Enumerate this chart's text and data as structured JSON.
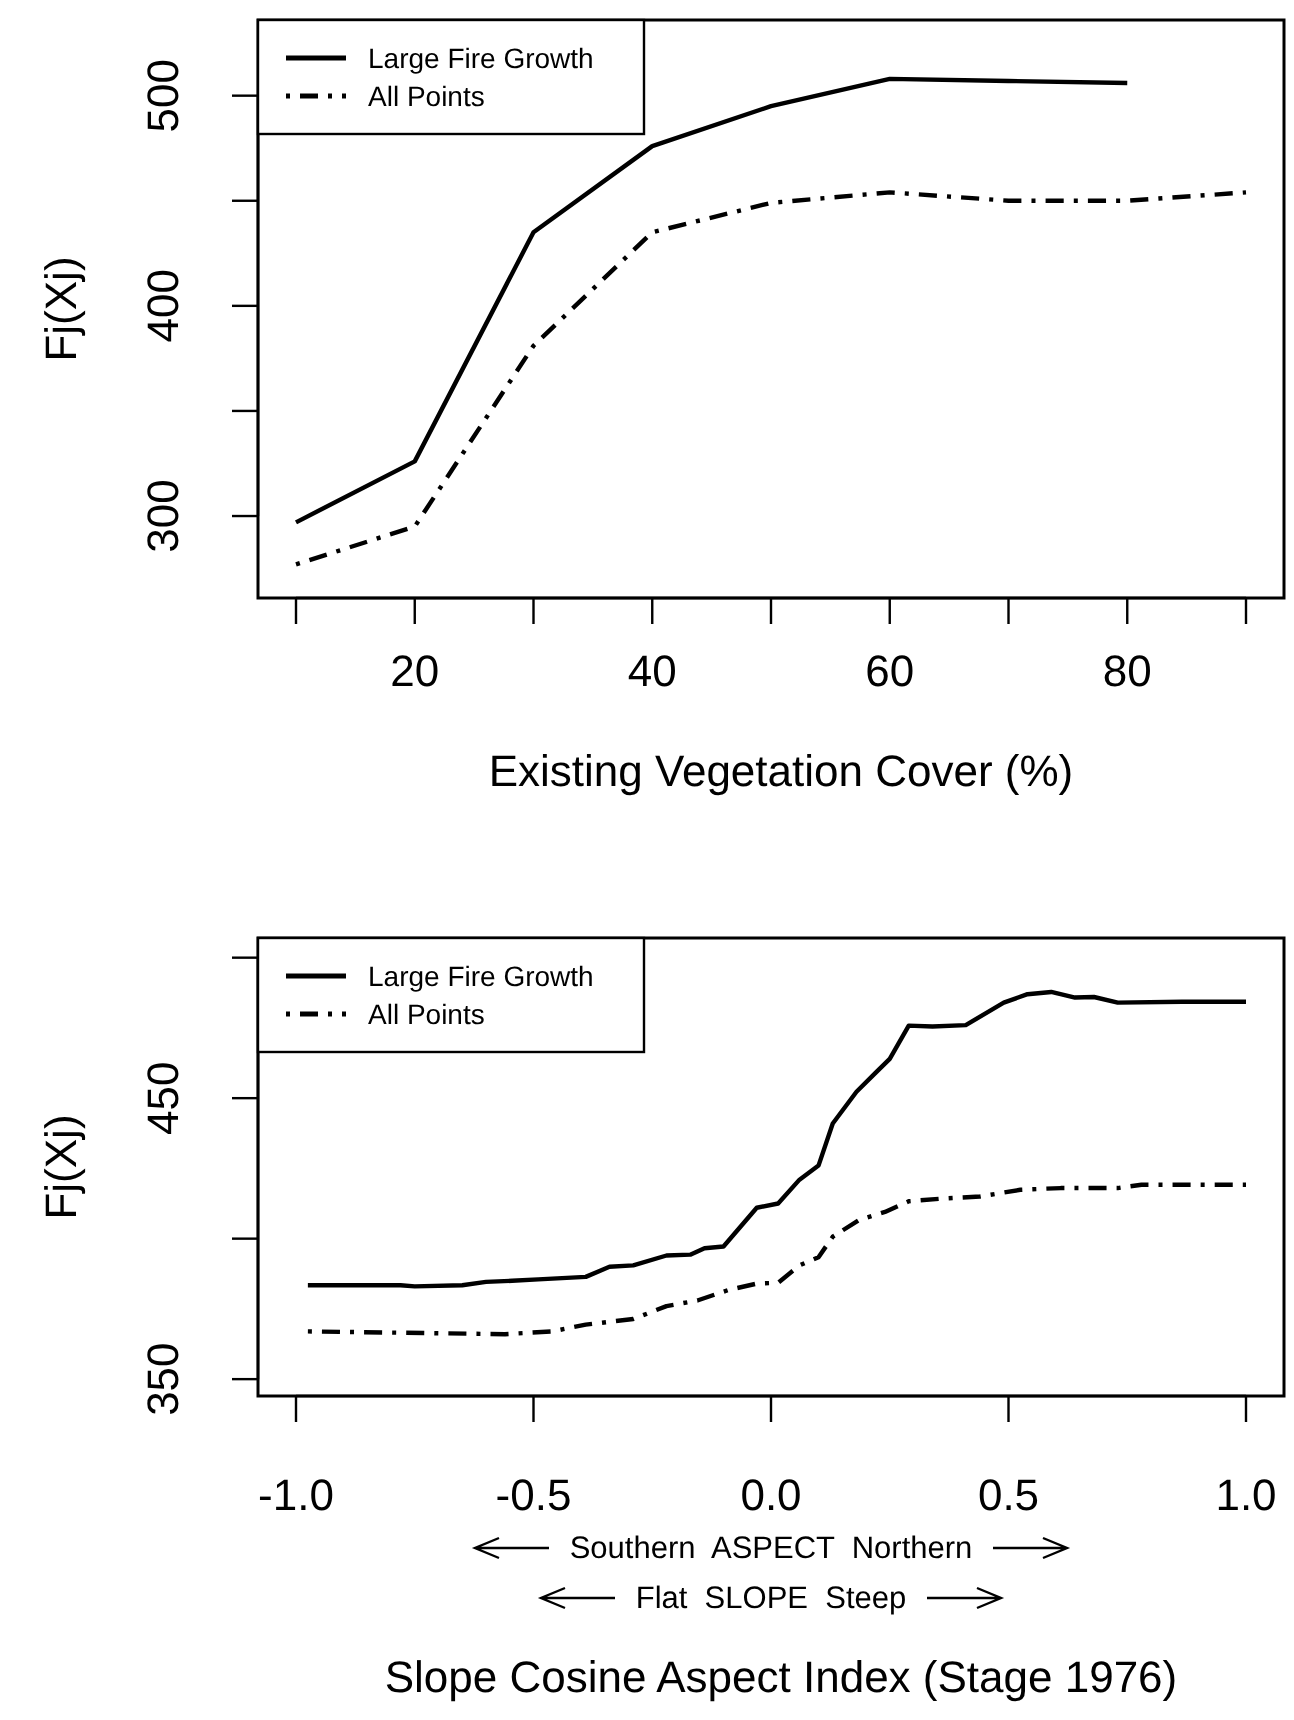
{
  "chart_data": [
    {
      "type": "line",
      "xlabel": "Existing Vegetation Cover (%)",
      "ylabel": "Fj(Xj)",
      "xlim": [
        6.8,
        93.2
      ],
      "ylim": [
        261,
        536
      ],
      "xticks": [
        {
          "value": 10,
          "label": null
        },
        20,
        {
          "value": 30,
          "label": null
        },
        40,
        {
          "value": 50,
          "label": null
        },
        60,
        {
          "value": 70,
          "label": null
        },
        80,
        {
          "value": 90,
          "label": null
        }
      ],
      "yticks": [
        300,
        {
          "value": 350,
          "label": null
        },
        400,
        {
          "value": 450,
          "label": null
        },
        500
      ],
      "legend": "top left",
      "grid": false,
      "series": [
        {
          "name": "Large Fire Growth",
          "color": "#000000",
          "line_style": "solid",
          "x": [
            10,
            20,
            30,
            40,
            50,
            60,
            70,
            80
          ],
          "values": [
            297,
            326,
            435,
            476,
            495,
            508,
            507,
            506
          ]
        },
        {
          "name": "All Points",
          "color": "#000000",
          "line_style": "dashed",
          "x": [
            10,
            20,
            30,
            40,
            50,
            60,
            70,
            80,
            90
          ],
          "values": [
            277,
            295,
            381,
            435,
            449,
            454,
            450,
            450,
            454
          ]
        }
      ]
    },
    {
      "type": "line",
      "xlabel": "Slope Cosine Aspect Index (Stage 1976)",
      "ylabel": "Fj(Xj)",
      "xlim": [
        -1.08,
        1.08
      ],
      "ylim": [
        344,
        507
      ],
      "xticks": [
        {
          "value": -1,
          "label": "-1.0"
        },
        {
          "value": -0.5,
          "label": "-0.5"
        },
        {
          "value": 0,
          "label": "0.0"
        },
        {
          "value": 0.5,
          "label": "0.5"
        },
        {
          "value": 1,
          "label": "1.0"
        }
      ],
      "yticks": [
        350,
        {
          "value": 400,
          "label": null
        },
        450,
        {
          "value": 500,
          "label": null
        }
      ],
      "annotations": [
        "Southern  ASPECT  Northern",
        "Flat  SLOPE  Steep"
      ],
      "legend": "top left",
      "grid": false,
      "series": [
        {
          "name": "Large Fire Growth",
          "color": "#000000",
          "line_style": "solid",
          "x": [
            -0.975,
            -0.78,
            -0.75,
            -0.65,
            -0.6,
            -0.545,
            -0.49,
            -0.39,
            -0.34,
            -0.29,
            -0.22,
            -0.17,
            -0.14,
            -0.1,
            -0.03,
            0.015,
            0.06,
            0.1,
            0.13,
            0.18,
            0.22,
            0.25,
            0.29,
            0.34,
            0.41,
            0.45,
            0.49,
            0.54,
            0.59,
            0.64,
            0.68,
            0.73,
            0.865,
            1.0
          ],
          "values": [
            383.4,
            383.4,
            383,
            383.4,
            384.6,
            385,
            385.5,
            386.4,
            390,
            390.5,
            394,
            394.3,
            396.6,
            397.2,
            411,
            412.5,
            421,
            426,
            441,
            452.3,
            459,
            464,
            475.8,
            475.5,
            476,
            480,
            484,
            487,
            487.8,
            485.8,
            486,
            484,
            484.3,
            484.3
          ]
        },
        {
          "name": "All Points",
          "color": "#000000",
          "line_style": "dashed",
          "x": [
            -0.975,
            -0.73,
            -0.56,
            -0.46,
            -0.39,
            -0.29,
            -0.22,
            -0.155,
            -0.09,
            -0.03,
            0.015,
            0.06,
            0.1,
            0.13,
            0.185,
            0.24,
            0.29,
            0.355,
            0.44,
            0.525,
            0.61,
            0.73,
            0.78,
            1.0
          ],
          "values": [
            367,
            366.4,
            366,
            367,
            369.4,
            371.4,
            376,
            378,
            381.7,
            384,
            384.3,
            390.5,
            393.4,
            400.7,
            406.6,
            409.5,
            413.3,
            414.2,
            415,
            417.4,
            418,
            418,
            419.2,
            419.2
          ]
        }
      ]
    }
  ]
}
